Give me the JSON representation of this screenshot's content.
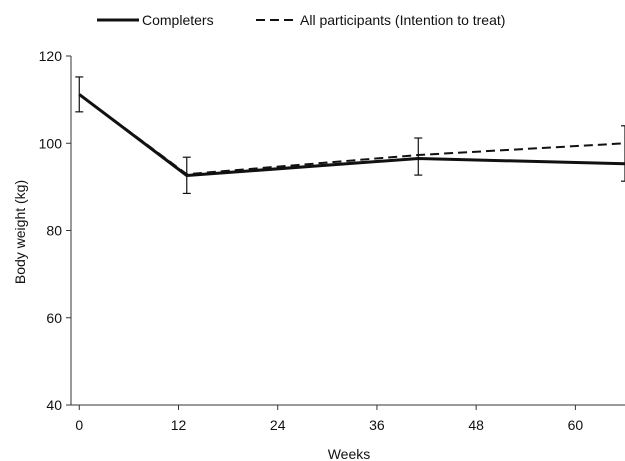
{
  "chart_data": {
    "type": "line",
    "title": "",
    "xlabel": "Weeks",
    "ylabel": "Body weight (kg)",
    "xlim": [
      -1,
      66
    ],
    "ylim": [
      40,
      120
    ],
    "xticks": [
      0,
      12,
      24,
      36,
      48,
      60
    ],
    "yticks": [
      40,
      60,
      80,
      100,
      120
    ],
    "grid": false,
    "legend_position": "top",
    "series": [
      {
        "name": "Completers",
        "style": "solid",
        "color": "#111111",
        "x": [
          0,
          13,
          41,
          66
        ],
        "y": [
          111.2,
          92.6,
          96.5,
          95.3
        ]
      },
      {
        "name": "All participants (Intention to treat)",
        "style": "dashed",
        "color": "#111111",
        "x": [
          0,
          13,
          41,
          66
        ],
        "y": [
          111.2,
          92.9,
          97.3,
          100
        ]
      }
    ],
    "error_bars": [
      {
        "x": 0,
        "low": 107.2,
        "high": 115.2
      },
      {
        "x": 13,
        "low": 88.5,
        "high": 96.8
      },
      {
        "x": 41,
        "low": 92.7,
        "high": 101.2
      },
      {
        "x": 66,
        "low": 91.3,
        "high": 104
      }
    ]
  }
}
